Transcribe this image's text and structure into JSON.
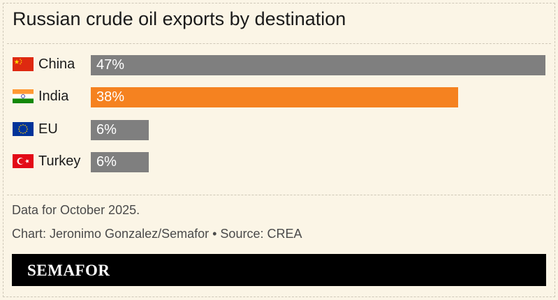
{
  "title": "Russian crude oil exports by destination",
  "chart_data": {
    "type": "bar",
    "orientation": "horizontal",
    "categories": [
      "China",
      "India",
      "EU",
      "Turkey"
    ],
    "values": [
      47,
      38,
      6,
      6
    ],
    "value_labels": [
      "47%",
      "38%",
      "6%",
      "6%"
    ],
    "unit": "%",
    "bar_colors": [
      "#7f7f7f",
      "#f58220",
      "#7f7f7f",
      "#7f7f7f"
    ],
    "xlim": [
      0,
      47
    ],
    "grid": false,
    "legend": "none"
  },
  "flags": [
    "china-flag-icon",
    "india-flag-icon",
    "eu-flag-icon",
    "turkey-flag-icon"
  ],
  "note": "Data for October 2025.",
  "credit": "Chart: Jeronimo Gonzalez/Semafor • Source: CREA",
  "logo": "SEMAFOR",
  "colors": {
    "background": "#fbf5e6",
    "highlight": "#f58220",
    "default_bar": "#7f7f7f",
    "footer": "#000000"
  }
}
